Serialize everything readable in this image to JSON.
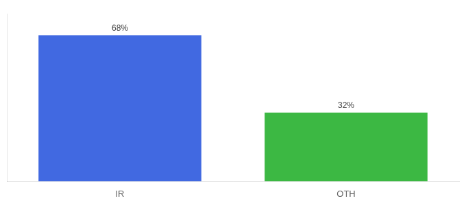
{
  "chart_data": {
    "type": "bar",
    "categories": [
      "IR",
      "OTH"
    ],
    "values": [
      68,
      32
    ],
    "value_labels": [
      "68%",
      "32%"
    ],
    "colors": [
      "#4169e1",
      "#3cb843"
    ],
    "ylim": [
      0,
      78
    ],
    "data_labels": true,
    "tick_labels": "x",
    "grid": false
  }
}
